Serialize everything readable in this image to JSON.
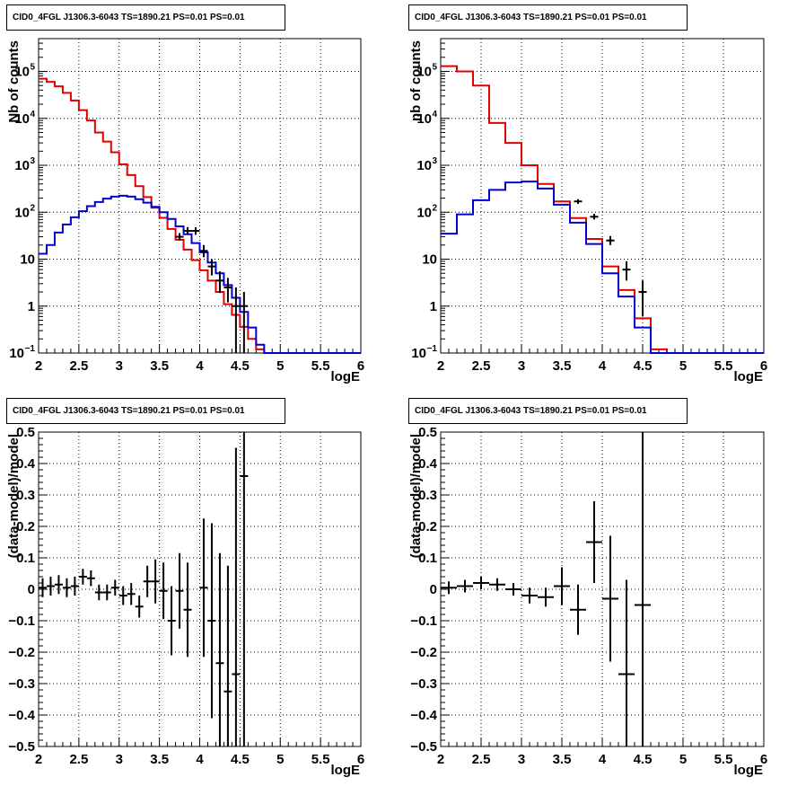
{
  "colors": {
    "data": "#000000",
    "total_model": "#e00000",
    "source_model": "#0000d0",
    "grid": "#000000"
  },
  "chart_data": [
    {
      "id": "counts_fine",
      "type": "line",
      "title": "CID0_4FGL J1306.3-6043 TS=1890.21 PS=0.01 PS=0.01",
      "xlabel": "logE",
      "ylabel": "Nb of counts",
      "log_y": true,
      "xlim": [
        2,
        6
      ],
      "ylim": [
        0.1,
        500000
      ],
      "grid": true,
      "x_ticks": [
        "2",
        "2.5",
        "3",
        "3.5",
        "4",
        "4.5",
        "5",
        "5.5",
        "6"
      ],
      "y_ticks": [
        {
          "v": 0.1,
          "label": "10",
          "sup": "−1"
        },
        {
          "v": 1,
          "label": "1",
          "sup": ""
        },
        {
          "v": 10,
          "label": "10",
          "sup": ""
        },
        {
          "v": 100,
          "label": "10",
          "sup": "2"
        },
        {
          "v": 1000,
          "label": "10",
          "sup": "3"
        },
        {
          "v": 10000,
          "label": "10",
          "sup": "4"
        },
        {
          "v": 100000,
          "label": "10",
          "sup": "5"
        }
      ],
      "bin_edges": [
        2.0,
        2.1,
        2.2,
        2.3,
        2.4,
        2.5,
        2.6,
        2.7,
        2.8,
        2.9,
        3.0,
        3.1,
        3.2,
        3.3,
        3.4,
        3.5,
        3.6,
        3.7,
        3.8,
        3.9,
        4.0,
        4.1,
        4.2,
        4.3,
        4.4,
        4.5,
        4.6,
        4.7,
        4.8,
        4.9,
        5.0,
        5.1,
        5.2,
        5.3,
        5.4,
        5.5,
        5.6,
        5.7,
        5.8,
        5.9,
        6.0
      ],
      "series": [
        {
          "role": "total",
          "values": [
            70000,
            60000,
            48000,
            35000,
            24000,
            15000,
            9000,
            5000,
            3200,
            1900,
            1050,
            620,
            360,
            210,
            125,
            76,
            44,
            26,
            16,
            9.5,
            5.8,
            3.5,
            2.0,
            1.1,
            0.65,
            0.36,
            0.2,
            0.12,
            0.1,
            0.1,
            0.1,
            0.1,
            0.1,
            0.1,
            0.1,
            0.1,
            0.1,
            0.1,
            0.1,
            0.1
          ]
        },
        {
          "role": "source",
          "values": [
            13,
            20,
            37,
            55,
            78,
            105,
            135,
            165,
            195,
            215,
            225,
            215,
            190,
            160,
            130,
            100,
            72,
            50,
            34,
            22,
            14,
            8.5,
            5.0,
            2.8,
            1.5,
            0.75,
            0.35,
            0.15,
            0.1,
            0.1,
            0.1,
            0.1,
            0.1,
            0.1,
            0.1,
            0.1,
            0.1,
            0.1,
            0.1,
            0.1
          ]
        },
        {
          "role": "data",
          "points": [
            {
              "x": 3.75,
              "y": 30,
              "lo": 25,
              "hi": 36
            },
            {
              "x": 3.85,
              "y": 40,
              "lo": 33,
              "hi": 48
            },
            {
              "x": 3.95,
              "y": 40,
              "lo": 33,
              "hi": 48
            },
            {
              "x": 4.05,
              "y": 15,
              "lo": 11,
              "hi": 20
            },
            {
              "x": 4.15,
              "y": 7,
              "lo": 4.5,
              "hi": 10
            },
            {
              "x": 4.25,
              "y": 3.5,
              "lo": 1.9,
              "hi": 5.5
            },
            {
              "x": 4.35,
              "y": 2.5,
              "lo": 1.2,
              "hi": 4
            },
            {
              "x": 4.45,
              "y": 1,
              "lo": 0.1,
              "hi": 2.5
            },
            {
              "x": 4.55,
              "y": 1,
              "lo": 0.1,
              "hi": 2
            }
          ]
        }
      ]
    },
    {
      "id": "counts_coarse",
      "type": "line",
      "title": "CID0_4FGL J1306.3-6043 TS=1890.21 PS=0.01 PS=0.01",
      "xlabel": "logE",
      "ylabel": "nb of counts",
      "log_y": true,
      "xlim": [
        2,
        6
      ],
      "ylim": [
        0.1,
        500000
      ],
      "grid": true,
      "x_ticks": [
        "2",
        "2.5",
        "3",
        "3.5",
        "4",
        "4.5",
        "5",
        "5.5",
        "6"
      ],
      "y_ticks": [
        {
          "v": 0.1,
          "label": "10",
          "sup": "−1"
        },
        {
          "v": 1,
          "label": "1",
          "sup": ""
        },
        {
          "v": 10,
          "label": "10",
          "sup": ""
        },
        {
          "v": 100,
          "label": "10",
          "sup": "2"
        },
        {
          "v": 1000,
          "label": "10",
          "sup": "3"
        },
        {
          "v": 10000,
          "label": "10",
          "sup": "4"
        },
        {
          "v": 100000,
          "label": "10",
          "sup": "5"
        }
      ],
      "bin_edges": [
        2.0,
        2.2,
        2.4,
        2.6,
        2.8,
        3.0,
        3.2,
        3.4,
        3.6,
        3.8,
        4.0,
        4.2,
        4.4,
        4.6,
        4.8,
        5.0,
        5.2,
        5.4,
        5.6,
        5.8,
        6.0
      ],
      "series": [
        {
          "role": "total",
          "values": [
            130000,
            100000,
            50000,
            8000,
            3000,
            1000,
            400,
            170,
            75,
            27,
            7,
            2.2,
            0.55,
            0.12,
            0.1,
            0.1,
            0.1,
            0.1,
            0.1,
            0.1
          ]
        },
        {
          "role": "source",
          "values": [
            35,
            90,
            180,
            300,
            430,
            450,
            320,
            145,
            60,
            21,
            5,
            1.6,
            0.35,
            0.1,
            0.1,
            0.1,
            0.1,
            0.1,
            0.1,
            0.1
          ]
        },
        {
          "role": "data",
          "points": [
            {
              "x": 3.7,
              "y": 170,
              "lo": 150,
              "hi": 190
            },
            {
              "x": 3.9,
              "y": 80,
              "lo": 70,
              "hi": 92
            },
            {
              "x": 4.1,
              "y": 25,
              "lo": 20,
              "hi": 31
            },
            {
              "x": 4.3,
              "y": 6,
              "lo": 3.5,
              "hi": 9
            },
            {
              "x": 4.5,
              "y": 2,
              "lo": 0.6,
              "hi": 3.5
            }
          ]
        }
      ]
    },
    {
      "id": "residuals_fine",
      "type": "scatter",
      "title": "CID0_4FGL J1306.3-6043 TS=1890.21 PS=0.01 PS=0.01",
      "xlabel": "logE",
      "ylabel": "(data-model)/model",
      "log_y": false,
      "xlim": [
        2,
        6
      ],
      "ylim": [
        -0.5,
        0.5
      ],
      "grid": true,
      "x_ticks": [
        "2",
        "2.5",
        "3",
        "3.5",
        "4",
        "4.5",
        "5",
        "5.5",
        "6"
      ],
      "y_ticks": [
        {
          "v": -0.5,
          "label": "−0.5",
          "sup": ""
        },
        {
          "v": -0.4,
          "label": "−0.4",
          "sup": ""
        },
        {
          "v": -0.3,
          "label": "−0.3",
          "sup": ""
        },
        {
          "v": -0.2,
          "label": "−0.2",
          "sup": ""
        },
        {
          "v": -0.1,
          "label": "−0.1",
          "sup": ""
        },
        {
          "v": 0,
          "label": "0",
          "sup": ""
        },
        {
          "v": 0.1,
          "label": "0.1",
          "sup": ""
        },
        {
          "v": 0.2,
          "label": "0.2",
          "sup": ""
        },
        {
          "v": 0.3,
          "label": "0.3",
          "sup": ""
        },
        {
          "v": 0.4,
          "label": "0.4",
          "sup": ""
        },
        {
          "v": 0.5,
          "label": "0.5",
          "sup": ""
        }
      ],
      "series": [
        {
          "role": "data",
          "half_width": 0.05,
          "points": [
            {
              "x": 2.05,
              "y": 0.005,
              "err": 0.03
            },
            {
              "x": 2.15,
              "y": 0.01,
              "err": 0.03
            },
            {
              "x": 2.25,
              "y": 0.015,
              "err": 0.03
            },
            {
              "x": 2.35,
              "y": 0.005,
              "err": 0.03
            },
            {
              "x": 2.45,
              "y": 0.01,
              "err": 0.03
            },
            {
              "x": 2.55,
              "y": 0.04,
              "err": 0.025
            },
            {
              "x": 2.65,
              "y": 0.035,
              "err": 0.025
            },
            {
              "x": 2.75,
              "y": -0.01,
              "err": 0.025
            },
            {
              "x": 2.85,
              "y": -0.01,
              "err": 0.025
            },
            {
              "x": 2.95,
              "y": 0.005,
              "err": 0.025
            },
            {
              "x": 3.05,
              "y": -0.02,
              "err": 0.03
            },
            {
              "x": 3.15,
              "y": -0.015,
              "err": 0.035
            },
            {
              "x": 3.25,
              "y": -0.055,
              "err": 0.035
            },
            {
              "x": 3.35,
              "y": 0.025,
              "err": 0.05
            },
            {
              "x": 3.45,
              "y": 0.025,
              "err": 0.07
            },
            {
              "x": 3.55,
              "y": -0.005,
              "err": 0.09
            },
            {
              "x": 3.65,
              "y": -0.1,
              "err": 0.11
            },
            {
              "x": 3.75,
              "y": -0.005,
              "err": 0.12
            },
            {
              "x": 3.85,
              "y": -0.065,
              "err": 0.15
            },
            {
              "x": 4.05,
              "y": 0.005,
              "err": 0.22
            },
            {
              "x": 4.15,
              "y": -0.1,
              "err": 0.31
            },
            {
              "x": 4.25,
              "y": -0.235,
              "err": 0.35
            },
            {
              "x": 4.35,
              "y": -0.325,
              "err": 0.4
            },
            {
              "x": 4.45,
              "y": -0.27,
              "err": 0.72
            },
            {
              "x": 4.55,
              "y": 0.36,
              "err": 0.86
            }
          ]
        }
      ]
    },
    {
      "id": "residuals_coarse",
      "type": "scatter",
      "title": "CID0_4FGL J1306.3-6043 TS=1890.21 PS=0.01 PS=0.01",
      "xlabel": "logE",
      "ylabel": "(data-model)/model",
      "log_y": false,
      "xlim": [
        2,
        6
      ],
      "ylim": [
        -0.5,
        0.5
      ],
      "grid": true,
      "x_ticks": [
        "2",
        "2.5",
        "3",
        "3.5",
        "4",
        "4.5",
        "5",
        "5.5",
        "6"
      ],
      "y_ticks": [
        {
          "v": -0.5,
          "label": "−0.5",
          "sup": ""
        },
        {
          "v": -0.4,
          "label": "−0.4",
          "sup": ""
        },
        {
          "v": -0.3,
          "label": "−0.3",
          "sup": ""
        },
        {
          "v": -0.2,
          "label": "−0.2",
          "sup": ""
        },
        {
          "v": -0.1,
          "label": "−0.1",
          "sup": ""
        },
        {
          "v": 0,
          "label": "0",
          "sup": ""
        },
        {
          "v": 0.1,
          "label": "0.1",
          "sup": ""
        },
        {
          "v": 0.2,
          "label": "0.2",
          "sup": ""
        },
        {
          "v": 0.3,
          "label": "0.3",
          "sup": ""
        },
        {
          "v": 0.4,
          "label": "0.4",
          "sup": ""
        },
        {
          "v": 0.5,
          "label": "0.5",
          "sup": ""
        }
      ],
      "series": [
        {
          "role": "data",
          "half_width": 0.1,
          "points": [
            {
              "x": 2.1,
              "y": 0.005,
              "err": 0.02
            },
            {
              "x": 2.3,
              "y": 0.01,
              "err": 0.02
            },
            {
              "x": 2.5,
              "y": 0.02,
              "err": 0.02
            },
            {
              "x": 2.7,
              "y": 0.015,
              "err": 0.02
            },
            {
              "x": 2.9,
              "y": 0.0,
              "err": 0.02
            },
            {
              "x": 3.1,
              "y": -0.02,
              "err": 0.025
            },
            {
              "x": 3.3,
              "y": -0.025,
              "err": 0.03
            },
            {
              "x": 3.5,
              "y": 0.01,
              "err": 0.06
            },
            {
              "x": 3.7,
              "y": -0.065,
              "err": 0.08
            },
            {
              "x": 3.9,
              "y": 0.15,
              "err": 0.13
            },
            {
              "x": 4.1,
              "y": -0.03,
              "err": 0.2
            },
            {
              "x": 4.3,
              "y": -0.27,
              "err": 0.3
            },
            {
              "x": 4.5,
              "y": -0.05,
              "err": 0.6
            }
          ]
        }
      ]
    }
  ]
}
